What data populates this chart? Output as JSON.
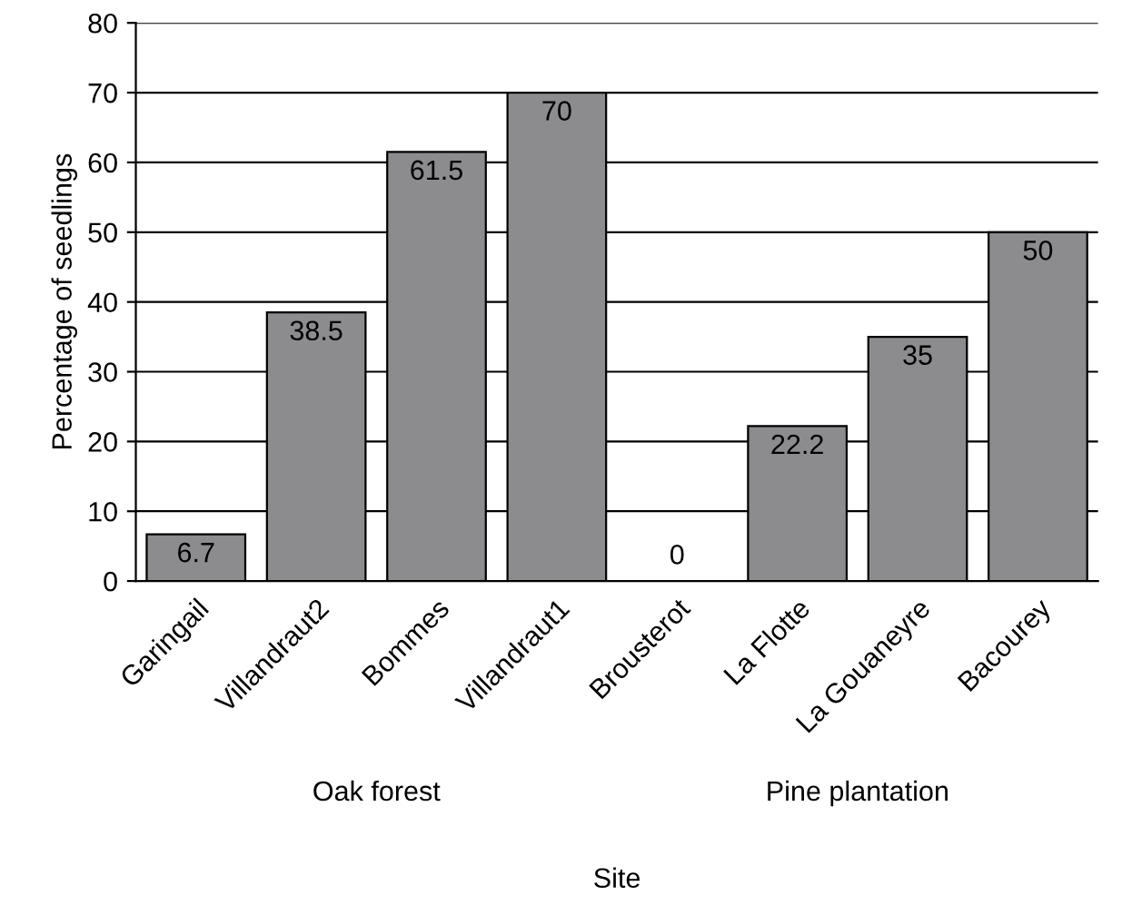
{
  "chart_data": {
    "type": "bar",
    "categories": [
      "Garingail",
      "Villandraut2",
      "Bommes",
      "Villandraut1",
      "Brousterot",
      "La Flotte",
      "La Gouaneyre",
      "Bacourey"
    ],
    "values": [
      6.7,
      38.5,
      61.5,
      70,
      0,
      22.2,
      35,
      50
    ],
    "color": "#8c8c8f",
    "xlabel": "Site",
    "ylabel": "Percentage of seedlings",
    "annotations": [
      "Oak forest",
      "Pine plantation"
    ],
    "ylim": [
      0,
      80
    ],
    "yticks": [
      0,
      10,
      20,
      30,
      40,
      50,
      60,
      70,
      80
    ],
    "grid": "y",
    "data_labels": true
  }
}
